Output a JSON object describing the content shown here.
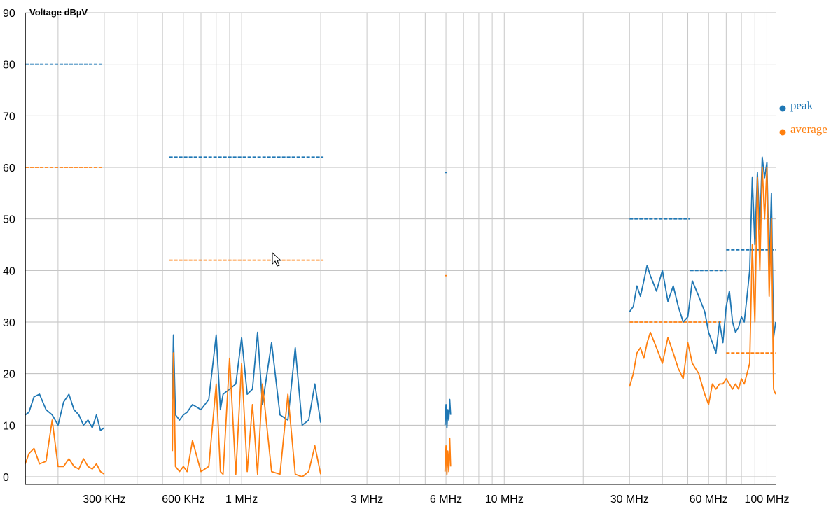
{
  "chart_data": {
    "type": "line",
    "ylabel": "Voltage dBµV",
    "ylim": [
      0,
      90
    ],
    "yticks": [
      0,
      10,
      20,
      30,
      40,
      50,
      60,
      70,
      80,
      90
    ],
    "xscale": "log",
    "xlim_hz": [
      150000,
      108000000
    ],
    "xtick_labels": [
      {
        "hz": 300000,
        "label": "300 KHz"
      },
      {
        "hz": 600000,
        "label": "600 KHz"
      },
      {
        "hz": 1000000,
        "label": "1 MHz"
      },
      {
        "hz": 3000000,
        "label": "3 MHz"
      },
      {
        "hz": 6000000,
        "label": "6 MHz"
      },
      {
        "hz": 10000000,
        "label": "10 MHz"
      },
      {
        "hz": 30000000,
        "label": "30 MHz"
      },
      {
        "hz": 60000000,
        "label": "60 MHz"
      },
      {
        "hz": 100000000,
        "label": "100 MHz"
      }
    ],
    "grid": true,
    "legend_position": "right",
    "colors": {
      "peak": "#1f77b4",
      "average": "#ff7f0e"
    },
    "series": [
      {
        "name": "peak",
        "segments": [
          {
            "x": [
              150000,
              155000,
              162000,
              170000,
              180000,
              190000,
              200000,
              210000,
              220000,
              230000,
              240000,
              250000,
              260000,
              270000,
              280000,
              290000,
              300000
            ],
            "y": [
              12,
              12.5,
              15.5,
              16,
              13,
              12,
              10,
              14.5,
              16,
              13,
              12,
              10,
              11,
              9.5,
              12,
              9,
              9.5
            ]
          },
          {
            "x": [
              545000,
              550000,
              560000,
              580000,
              600000,
              620000,
              650000,
              700000,
              750000,
              800000,
              830000,
              850000,
              900000,
              950000,
              1000000,
              1050000,
              1100000,
              1150000,
              1200000,
              1300000,
              1400000,
              1500000,
              1600000,
              1700000,
              1800000,
              1900000,
              2000000
            ],
            "y": [
              15,
              27.5,
              12,
              11,
              12,
              12.5,
              14,
              13,
              15,
              27.5,
              13,
              16,
              17,
              18,
              27,
              16,
              17,
              28,
              14,
              26,
              12,
              11,
              25,
              10,
              11,
              18,
              10.5
            ]
          },
          {
            "x": [
              5950000,
              6000000,
              6050000,
              6100000,
              6150000,
              6200000,
              6250000
            ],
            "y": [
              10,
              14,
              9.5,
              13,
              11,
              15,
              12
            ]
          },
          {
            "x": [
              30000000,
              31000000,
              32000000,
              33000000,
              34000000,
              35000000,
              36000000,
              38000000,
              40000000,
              42000000,
              44000000,
              46000000,
              48000000,
              50000000,
              52000000,
              55000000,
              58000000,
              60000000,
              62000000,
              64000000,
              66000000,
              68000000,
              70000000,
              72000000,
              74000000,
              76000000,
              78000000,
              80000000,
              82000000,
              84000000,
              86000000,
              88000000,
              90000000,
              92000000,
              94000000,
              96000000,
              98000000,
              100000000,
              102000000,
              104000000,
              106000000,
              108000000
            ],
            "y": [
              32,
              33,
              37,
              35,
              38,
              41,
              39,
              36,
              40,
              34,
              37,
              33,
              30,
              31,
              38,
              35,
              32,
              28,
              26,
              24,
              30,
              26,
              33,
              36,
              30,
              28,
              29,
              31,
              30,
              35,
              40,
              58,
              45,
              59,
              48,
              62,
              58,
              61,
              40,
              55,
              27,
              30
            ]
          }
        ],
        "limit_lines": [
          {
            "x": [
              150000,
              300000
            ],
            "y": 80
          },
          {
            "x": [
              530000,
              2050000
            ],
            "y": 62
          },
          {
            "x": [
              5950000,
              6050000
            ],
            "y": 59
          },
          {
            "x": [
              30000000,
              51000000
            ],
            "y": 50
          },
          {
            "x": [
              51000000,
              70000000
            ],
            "y": 40
          },
          {
            "x": [
              70000000,
              108000000
            ],
            "y": 44
          }
        ]
      },
      {
        "name": "average",
        "segments": [
          {
            "x": [
              150000,
              155000,
              162000,
              170000,
              180000,
              190000,
              200000,
              210000,
              220000,
              230000,
              240000,
              250000,
              260000,
              270000,
              280000,
              290000,
              300000
            ],
            "y": [
              2.5,
              4.5,
              5.5,
              2.5,
              3,
              11,
              2,
              2,
              3.5,
              2,
              1.5,
              3.5,
              2,
              1.5,
              2.5,
              1,
              0.5
            ]
          },
          {
            "x": [
              545000,
              550000,
              560000,
              580000,
              600000,
              620000,
              650000,
              700000,
              750000,
              800000,
              830000,
              850000,
              900000,
              950000,
              1000000,
              1050000,
              1100000,
              1150000,
              1200000,
              1300000,
              1400000,
              1500000,
              1600000,
              1700000,
              1800000,
              1900000,
              2000000
            ],
            "y": [
              5,
              24,
              2,
              1,
              2,
              1,
              7,
              1,
              2,
              18,
              1,
              0.5,
              23,
              0.5,
              22,
              1,
              14,
              0.5,
              18,
              1,
              0.5,
              16,
              0.5,
              0,
              1,
              6,
              0.5
            ]
          },
          {
            "x": [
              5950000,
              6000000,
              6050000,
              6100000,
              6150000,
              6200000,
              6250000
            ],
            "y": [
              1,
              6,
              0.5,
              5,
              1,
              7.5,
              2
            ]
          },
          {
            "x": [
              30000000,
              31000000,
              32000000,
              33000000,
              34000000,
              35000000,
              36000000,
              38000000,
              40000000,
              42000000,
              44000000,
              46000000,
              48000000,
              50000000,
              52000000,
              55000000,
              58000000,
              60000000,
              62000000,
              64000000,
              66000000,
              68000000,
              70000000,
              72000000,
              74000000,
              76000000,
              78000000,
              80000000,
              82000000,
              84000000,
              86000000,
              88000000,
              90000000,
              92000000,
              94000000,
              96000000,
              98000000,
              100000000,
              102000000,
              104000000,
              106000000,
              108000000
            ],
            "y": [
              17.5,
              20,
              24,
              25,
              23,
              26,
              28,
              25,
              22,
              27,
              24,
              21,
              19,
              26,
              22,
              20,
              16,
              14,
              18,
              17,
              18,
              18,
              19,
              18,
              17,
              18,
              17,
              19,
              18,
              20,
              22,
              45,
              30,
              58,
              40,
              60,
              50,
              60,
              35,
              50,
              17,
              16
            ]
          }
        ],
        "limit_lines": [
          {
            "x": [
              150000,
              300000
            ],
            "y": 60
          },
          {
            "x": [
              530000,
              2050000
            ],
            "y": 42
          },
          {
            "x": [
              5950000,
              6050000
            ],
            "y": 39
          },
          {
            "x": [
              30000000,
              67000000
            ],
            "y": 30
          },
          {
            "x": [
              70000000,
              108000000
            ],
            "y": 24
          }
        ]
      }
    ]
  }
}
